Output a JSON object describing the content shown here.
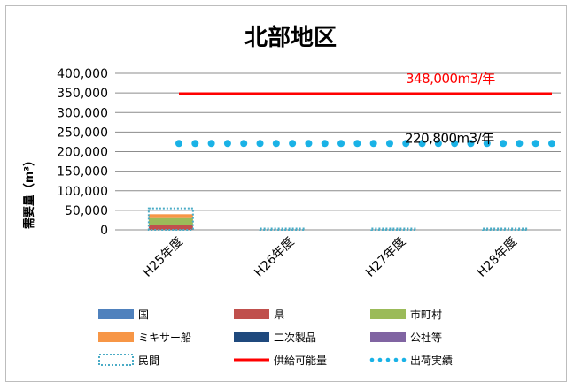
{
  "chart_data": {
    "type": "bar",
    "title": "北部地区",
    "ylabel": "需要量（m³）",
    "categories": [
      "H25年度",
      "H26年度",
      "H27年度",
      "H28年度"
    ],
    "ylim": [
      0,
      400000
    ],
    "yticks": [
      0,
      50000,
      100000,
      150000,
      200000,
      250000,
      300000,
      350000,
      400000
    ],
    "ytick_labels": [
      "0",
      "50,000",
      "100,000",
      "150,000",
      "200,000",
      "250,000",
      "300,000",
      "350,000",
      "400,000"
    ],
    "grid": true,
    "legend_position": "bottom",
    "series": [
      {
        "name": "国",
        "color": "#4f81bd",
        "values": [
          0,
          0,
          0,
          0
        ]
      },
      {
        "name": "県",
        "color": "#c0504d",
        "values": [
          12000,
          0,
          0,
          0
        ]
      },
      {
        "name": "市町村",
        "color": "#9bbb59",
        "values": [
          18000,
          0,
          0,
          0
        ]
      },
      {
        "name": "ミキサー船",
        "color": "#f79646",
        "values": [
          10000,
          0,
          0,
          0
        ]
      },
      {
        "name": "二次製品",
        "color": "#1f497d",
        "values": [
          0,
          0,
          0,
          0
        ]
      },
      {
        "name": "公社等",
        "color": "#8064a2",
        "values": [
          0,
          0,
          0,
          0
        ]
      },
      {
        "name": "民間",
        "color": "#4bacc6",
        "style": "dotted-outline",
        "values": [
          55000,
          0,
          0,
          0
        ]
      }
    ],
    "lines": [
      {
        "name": "供給可能量",
        "color": "#ff0000",
        "style": "solid",
        "value": 348000,
        "label": "348,000m3/年"
      },
      {
        "name": "出荷実績",
        "color": "#1ab2e6",
        "style": "dots",
        "value": 220800,
        "label": "220,800m3/年"
      }
    ]
  }
}
